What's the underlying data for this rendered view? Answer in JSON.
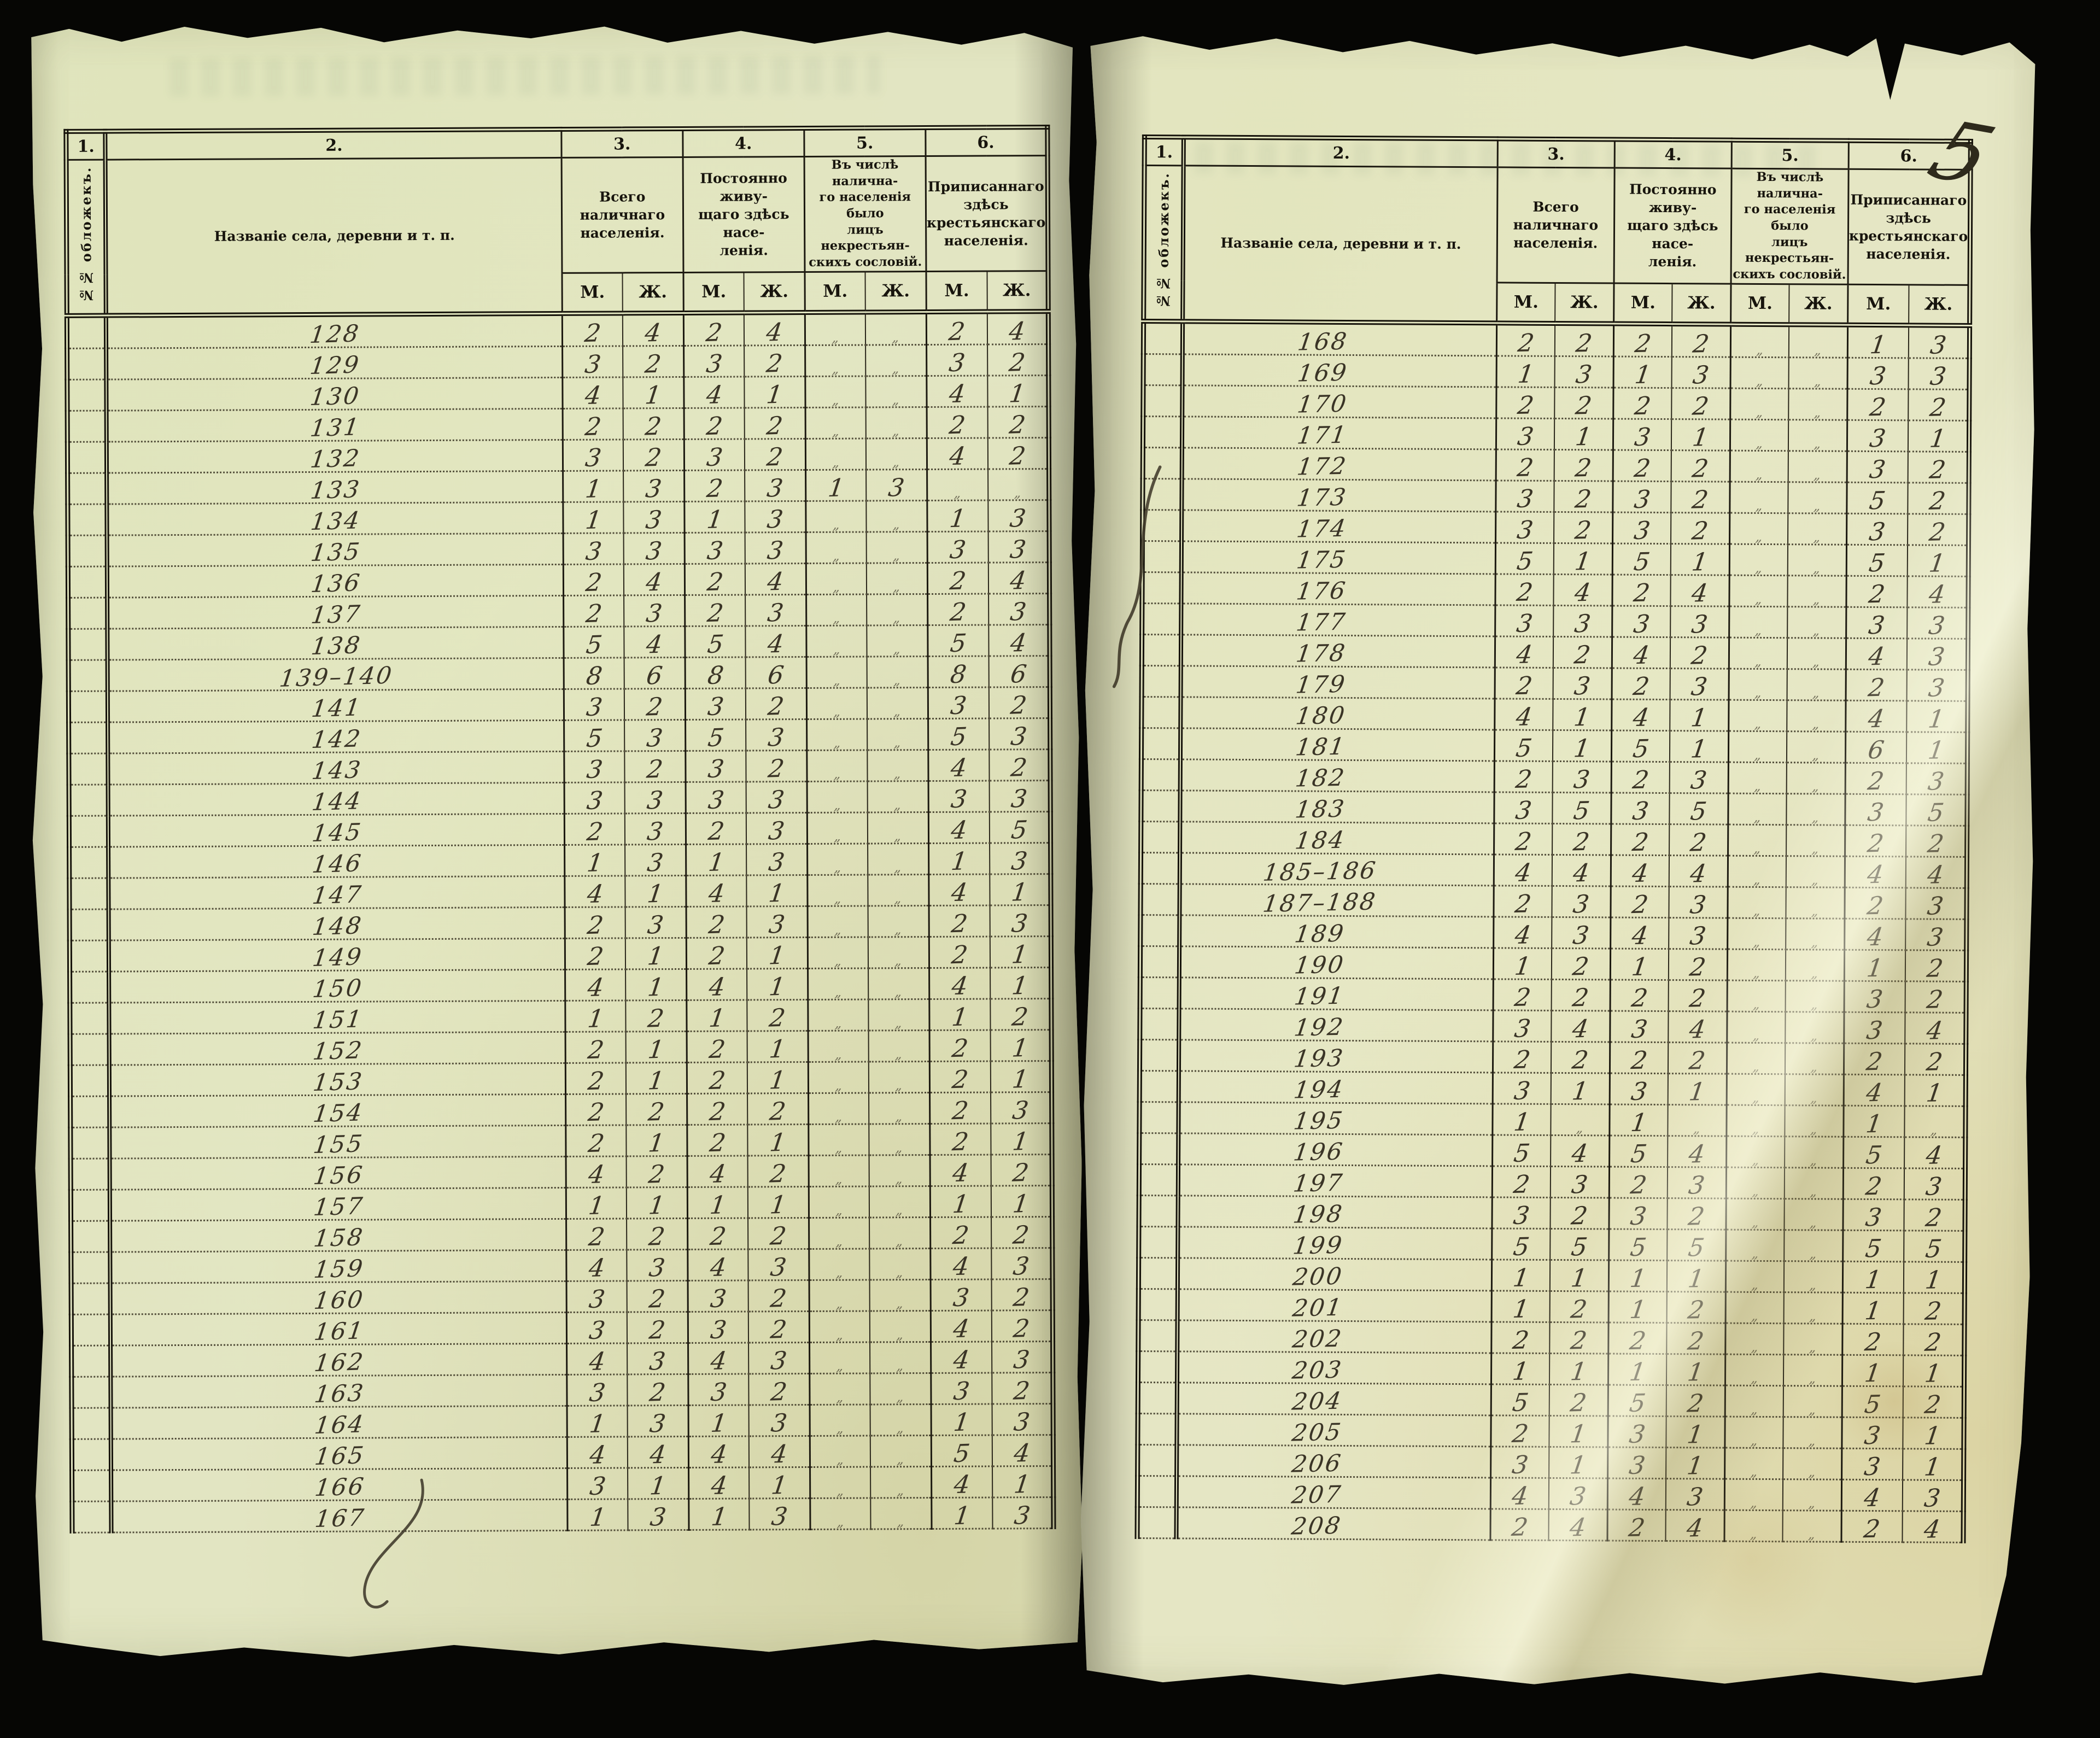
{
  "page_number": "5",
  "table": {
    "col_numbers": [
      "1.",
      "2.",
      "3.",
      "4.",
      "5.",
      "6."
    ],
    "col1_label": "№№ обложекъ.",
    "col2_label": "Названіе села, деревни и т. п.",
    "col3_label": "Всего наличнаго\nнаселенія.",
    "col4_label": "Постоянно живу-\nщаго здѣсь насе-\nленія.",
    "col5_label": "Въ числѣ налична-\nго населенія было\nлицъ некрестьян-\nскихъ сословій.",
    "col6_label": "Приписаннаго здѣсь\nкрестьянскаго\nнаселенія.",
    "sex_labels": [
      "М.",
      "Ж."
    ]
  },
  "left_page": {
    "rows": [
      {
        "name": "128",
        "values": [
          "2",
          "4",
          "2",
          "4",
          "„",
          "„",
          "2",
          "4"
        ]
      },
      {
        "name": "129",
        "values": [
          "3",
          "2",
          "3",
          "2",
          "„",
          "„",
          "3",
          "2"
        ]
      },
      {
        "name": "130",
        "values": [
          "4",
          "1",
          "4",
          "1",
          "„",
          "„",
          "4",
          "1"
        ]
      },
      {
        "name": "131",
        "values": [
          "2",
          "2",
          "2",
          "2",
          "„",
          "„",
          "2",
          "2"
        ]
      },
      {
        "name": "132",
        "values": [
          "3",
          "2",
          "3",
          "2",
          "„",
          "„",
          "4",
          "2"
        ]
      },
      {
        "name": "133",
        "values": [
          "1",
          "3",
          "2",
          "3",
          "1",
          "3",
          "„",
          "„"
        ]
      },
      {
        "name": "134",
        "values": [
          "1",
          "3",
          "1",
          "3",
          "„",
          "„",
          "1",
          "3"
        ]
      },
      {
        "name": "135",
        "values": [
          "3",
          "3",
          "3",
          "3",
          "„",
          "„",
          "3",
          "3"
        ]
      },
      {
        "name": "136",
        "values": [
          "2",
          "4",
          "2",
          "4",
          "„",
          "„",
          "2",
          "4"
        ]
      },
      {
        "name": "137",
        "values": [
          "2",
          "3",
          "2",
          "3",
          "„",
          "„",
          "2",
          "3"
        ]
      },
      {
        "name": "138",
        "values": [
          "5",
          "4",
          "5",
          "4",
          "„",
          "„",
          "5",
          "4"
        ]
      },
      {
        "name": "139–140",
        "values": [
          "8",
          "6",
          "8",
          "6",
          "„",
          "„",
          "8",
          "6"
        ]
      },
      {
        "name": "141",
        "values": [
          "3",
          "2",
          "3",
          "2",
          "„",
          "„",
          "3",
          "2"
        ]
      },
      {
        "name": "142",
        "values": [
          "5",
          "3",
          "5",
          "3",
          "„",
          "„",
          "5",
          "3"
        ]
      },
      {
        "name": "143",
        "values": [
          "3",
          "2",
          "3",
          "2",
          "„",
          "„",
          "4",
          "2"
        ]
      },
      {
        "name": "144",
        "values": [
          "3",
          "3",
          "3",
          "3",
          "„",
          "„",
          "3",
          "3"
        ]
      },
      {
        "name": "145",
        "values": [
          "2",
          "3",
          "2",
          "3",
          "„",
          "„",
          "4",
          "5"
        ]
      },
      {
        "name": "146",
        "values": [
          "1",
          "3",
          "1",
          "3",
          "„",
          "„",
          "1",
          "3"
        ]
      },
      {
        "name": "147",
        "values": [
          "4",
          "1",
          "4",
          "1",
          "„",
          "„",
          "4",
          "1"
        ]
      },
      {
        "name": "148",
        "values": [
          "2",
          "3",
          "2",
          "3",
          "„",
          "„",
          "2",
          "3"
        ]
      },
      {
        "name": "149",
        "values": [
          "2",
          "1",
          "2",
          "1",
          "„",
          "„",
          "2",
          "1"
        ]
      },
      {
        "name": "150",
        "values": [
          "4",
          "1",
          "4",
          "1",
          "„",
          "„",
          "4",
          "1"
        ]
      },
      {
        "name": "151",
        "values": [
          "1",
          "2",
          "1",
          "2",
          "„",
          "„",
          "1",
          "2"
        ]
      },
      {
        "name": "152",
        "values": [
          "2",
          "1",
          "2",
          "1",
          "„",
          "„",
          "2",
          "1"
        ]
      },
      {
        "name": "153",
        "values": [
          "2",
          "1",
          "2",
          "1",
          "„",
          "„",
          "2",
          "1"
        ]
      },
      {
        "name": "154",
        "values": [
          "2",
          "2",
          "2",
          "2",
          "„",
          "„",
          "2",
          "3"
        ]
      },
      {
        "name": "155",
        "values": [
          "2",
          "1",
          "2",
          "1",
          "„",
          "„",
          "2",
          "1"
        ]
      },
      {
        "name": "156",
        "values": [
          "4",
          "2",
          "4",
          "2",
          "„",
          "„",
          "4",
          "2"
        ]
      },
      {
        "name": "157",
        "values": [
          "1",
          "1",
          "1",
          "1",
          "„",
          "„",
          "1",
          "1"
        ]
      },
      {
        "name": "158",
        "values": [
          "2",
          "2",
          "2",
          "2",
          "„",
          "„",
          "2",
          "2"
        ]
      },
      {
        "name": "159",
        "values": [
          "4",
          "3",
          "4",
          "3",
          "„",
          "„",
          "4",
          "3"
        ]
      },
      {
        "name": "160",
        "values": [
          "3",
          "2",
          "3",
          "2",
          "„",
          "„",
          "3",
          "2"
        ]
      },
      {
        "name": "161",
        "values": [
          "3",
          "2",
          "3",
          "2",
          "„",
          "„",
          "4",
          "2"
        ]
      },
      {
        "name": "162",
        "values": [
          "4",
          "3",
          "4",
          "3",
          "„",
          "„",
          "4",
          "3"
        ]
      },
      {
        "name": "163",
        "values": [
          "3",
          "2",
          "3",
          "2",
          "„",
          "„",
          "3",
          "2"
        ]
      },
      {
        "name": "164",
        "values": [
          "1",
          "3",
          "1",
          "3",
          "„",
          "„",
          "1",
          "3"
        ]
      },
      {
        "name": "165",
        "values": [
          "4",
          "4",
          "4",
          "4",
          "„",
          "„",
          "5",
          "4"
        ]
      },
      {
        "name": "166",
        "values": [
          "3",
          "1",
          "4",
          "1",
          "„",
          "„",
          "4",
          "1"
        ]
      },
      {
        "name": "167",
        "values": [
          "1",
          "3",
          "1",
          "3",
          "„",
          "„",
          "1",
          "3"
        ]
      }
    ]
  },
  "right_page": {
    "rows": [
      {
        "name": "168",
        "values": [
          "2",
          "2",
          "2",
          "2",
          "„",
          "„",
          "1",
          "3"
        ]
      },
      {
        "name": "169",
        "values": [
          "1",
          "3",
          "1",
          "3",
          "„",
          "„",
          "3",
          "3"
        ]
      },
      {
        "name": "170",
        "values": [
          "2",
          "2",
          "2",
          "2",
          "„",
          "„",
          "2",
          "2"
        ]
      },
      {
        "name": "171",
        "values": [
          "3",
          "1",
          "3",
          "1",
          "„",
          "„",
          "3",
          "1"
        ]
      },
      {
        "name": "172",
        "values": [
          "2",
          "2",
          "2",
          "2",
          "„",
          "„",
          "3",
          "2"
        ]
      },
      {
        "name": "173",
        "values": [
          "3",
          "2",
          "3",
          "2",
          "„",
          "„",
          "5",
          "2"
        ]
      },
      {
        "name": "174",
        "values": [
          "3",
          "2",
          "3",
          "2",
          "„",
          "„",
          "3",
          "2"
        ]
      },
      {
        "name": "175",
        "values": [
          "5",
          "1",
          "5",
          "1",
          "„",
          "„",
          "5",
          "1"
        ]
      },
      {
        "name": "176",
        "values": [
          "2",
          "4",
          "2",
          "4",
          "„",
          "„",
          "2",
          "4"
        ]
      },
      {
        "name": "177",
        "values": [
          "3",
          "3",
          "3",
          "3",
          "„",
          "„",
          "3",
          "3"
        ]
      },
      {
        "name": "178",
        "values": [
          "4",
          "2",
          "4",
          "2",
          "„",
          "„",
          "4",
          "3"
        ]
      },
      {
        "name": "179",
        "values": [
          "2",
          "3",
          "2",
          "3",
          "„",
          "„",
          "2",
          "3"
        ]
      },
      {
        "name": "180",
        "values": [
          "4",
          "1",
          "4",
          "1",
          "„",
          "„",
          "4",
          "1"
        ]
      },
      {
        "name": "181",
        "values": [
          "5",
          "1",
          "5",
          "1",
          "„",
          "„",
          "6",
          "1"
        ]
      },
      {
        "name": "182",
        "values": [
          "2",
          "3",
          "2",
          "3",
          "„",
          "„",
          "2",
          "3"
        ]
      },
      {
        "name": "183",
        "values": [
          "3",
          "5",
          "3",
          "5",
          "„",
          "„",
          "3",
          "5"
        ]
      },
      {
        "name": "184",
        "values": [
          "2",
          "2",
          "2",
          "2",
          "„",
          "„",
          "2",
          "2"
        ]
      },
      {
        "name": "185–186",
        "values": [
          "4",
          "4",
          "4",
          "4",
          "„",
          "„",
          "4",
          "4"
        ]
      },
      {
        "name": "187–188",
        "values": [
          "2",
          "3",
          "2",
          "3",
          "„",
          "„",
          "2",
          "3"
        ]
      },
      {
        "name": "189",
        "values": [
          "4",
          "3",
          "4",
          "3",
          "„",
          "„",
          "4",
          "3"
        ]
      },
      {
        "name": "190",
        "values": [
          "1",
          "2",
          "1",
          "2",
          "„",
          "„",
          "1",
          "2"
        ]
      },
      {
        "name": "191",
        "values": [
          "2",
          "2",
          "2",
          "2",
          "„",
          "„",
          "3",
          "2"
        ]
      },
      {
        "name": "192",
        "values": [
          "3",
          "4",
          "3",
          "4",
          "„",
          "„",
          "3",
          "4"
        ]
      },
      {
        "name": "193",
        "values": [
          "2",
          "2",
          "2",
          "2",
          "„",
          "„",
          "2",
          "2"
        ]
      },
      {
        "name": "194",
        "values": [
          "3",
          "1",
          "3",
          "1",
          "„",
          "„",
          "4",
          "1"
        ]
      },
      {
        "name": "195",
        "values": [
          "1",
          "„",
          "1",
          "„",
          "„",
          "„",
          "1",
          "„"
        ]
      },
      {
        "name": "196",
        "values": [
          "5",
          "4",
          "5",
          "4",
          "„",
          "„",
          "5",
          "4"
        ]
      },
      {
        "name": "197",
        "values": [
          "2",
          "3",
          "2",
          "3",
          "„",
          "„",
          "2",
          "3"
        ]
      },
      {
        "name": "198",
        "values": [
          "3",
          "2",
          "3",
          "2",
          "„",
          "„",
          "3",
          "2"
        ]
      },
      {
        "name": "199",
        "values": [
          "5",
          "5",
          "5",
          "5",
          "„",
          "„",
          "5",
          "5"
        ]
      },
      {
        "name": "200",
        "values": [
          "1",
          "1",
          "1",
          "1",
          "„",
          "„",
          "1",
          "1"
        ]
      },
      {
        "name": "201",
        "values": [
          "1",
          "2",
          "1",
          "2",
          "„",
          "„",
          "1",
          "2"
        ]
      },
      {
        "name": "202",
        "values": [
          "2",
          "2",
          "2",
          "2",
          "„",
          "„",
          "2",
          "2"
        ]
      },
      {
        "name": "203",
        "values": [
          "1",
          "1",
          "1",
          "1",
          "„",
          "„",
          "1",
          "1"
        ]
      },
      {
        "name": "204",
        "values": [
          "5",
          "2",
          "5",
          "2",
          "„",
          "„",
          "5",
          "2"
        ]
      },
      {
        "name": "205",
        "values": [
          "2",
          "1",
          "3",
          "1",
          "„",
          "„",
          "3",
          "1"
        ]
      },
      {
        "name": "206",
        "values": [
          "3",
          "1",
          "3",
          "1",
          "„",
          "„",
          "3",
          "1"
        ]
      },
      {
        "name": "207",
        "values": [
          "4",
          "3",
          "4",
          "3",
          "„",
          "„",
          "4",
          "3"
        ]
      },
      {
        "name": "208",
        "values": [
          "2",
          "4",
          "2",
          "4",
          "„",
          "„",
          "2",
          "4"
        ]
      }
    ]
  }
}
